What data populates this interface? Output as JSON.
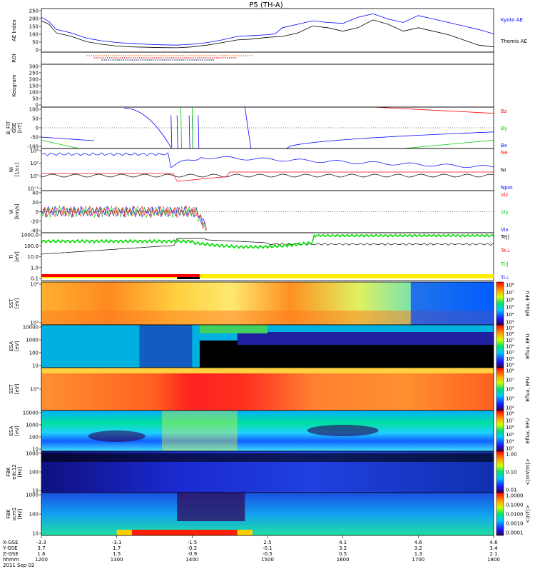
{
  "title": "P5 (TH-A)",
  "colors": {
    "blue": "#0000ff",
    "red": "#ff0000",
    "green": "#00cc00",
    "black": "#000000",
    "orange": "#e07020"
  },
  "chart_data": [
    {
      "type": "line",
      "panel": "AE Index",
      "ylabel": "AE Index",
      "yticks": [
        "250",
        "200",
        "150",
        "100",
        "50",
        "0"
      ],
      "ylim": [
        0,
        250
      ],
      "series": [
        {
          "name": "Kyoto AE",
          "color": "#0000ff",
          "x": [
            1200,
            1210,
            1220,
            1240,
            1260,
            1280,
            1300,
            1320,
            1340,
            1360,
            1380,
            1400,
            1420,
            1440,
            1460,
            1480,
            1500,
            1510,
            1520,
            1540,
            1560,
            1580,
            1600,
            1620,
            1640,
            1660,
            1680,
            1700,
            1720,
            1740,
            1760,
            1780,
            1800
          ],
          "y": [
            200,
            175,
            130,
            110,
            80,
            65,
            55,
            50,
            45,
            42,
            40,
            45,
            55,
            70,
            90,
            95,
            100,
            105,
            140,
            160,
            180,
            170,
            165,
            200,
            220,
            190,
            170,
            210,
            190,
            170,
            150,
            130,
            105
          ]
        },
        {
          "name": "Themis AE",
          "color": "#000000",
          "x": [
            1200,
            1210,
            1220,
            1240,
            1260,
            1280,
            1300,
            1320,
            1340,
            1360,
            1380,
            1400,
            1420,
            1440,
            1460,
            1480,
            1500,
            1520,
            1540,
            1560,
            1580,
            1600,
            1620,
            1640,
            1660,
            1680,
            1700,
            1720,
            1740,
            1760,
            1780,
            1800
          ],
          "y": [
            180,
            160,
            110,
            90,
            60,
            45,
            35,
            30,
            28,
            26,
            25,
            30,
            40,
            55,
            70,
            75,
            85,
            90,
            110,
            150,
            140,
            120,
            140,
            185,
            160,
            120,
            140,
            120,
            100,
            70,
            40,
            30
          ]
        }
      ]
    },
    {
      "type": "line",
      "panel": "ROI",
      "ylabel": "ROI",
      "note": "dotted region-of-interest bars"
    },
    {
      "type": "line",
      "panel": "Keogram",
      "ylabel": "Keogram",
      "yticks": [
        "300",
        "250",
        "200",
        "150",
        "100",
        "50",
        "0"
      ],
      "ylim": [
        0,
        300
      ]
    },
    {
      "type": "line",
      "panel": "B FIT GSE",
      "ylabel": "B_FIT\nGSE\n[nT]",
      "yticks": [
        "100",
        "50",
        "0",
        "-50",
        "-100"
      ],
      "ylim": [
        -100,
        100
      ],
      "legend": [
        "Bz",
        "By",
        "Bx"
      ],
      "legend_colors": [
        "#ff0000",
        "#00cc00",
        "#0000ff"
      ]
    },
    {
      "type": "line",
      "panel": "Ni",
      "ylabel": "Ni\n[1/cc]",
      "yticks": [
        "10⁴",
        "10²",
        "10⁰",
        "10⁻²"
      ],
      "legend": [
        "Ne",
        "Ni",
        "Npot"
      ],
      "legend_colors": [
        "#ff0000",
        "#000000",
        "#0000ff"
      ]
    },
    {
      "type": "line",
      "panel": "Vi",
      "ylabel": "Vi\n[km/s]",
      "yticks": [
        "40",
        "20",
        "0",
        "-20",
        "-40"
      ],
      "ylim": [
        -40,
        40
      ],
      "legend": [
        "Viz",
        "Viy",
        "Vix"
      ],
      "legend_colors": [
        "#ff0000",
        "#00cc00",
        "#0000ff"
      ]
    },
    {
      "type": "line",
      "panel": "Ti",
      "ylabel": "Ti\n[eV]",
      "yticks": [
        "1000.0",
        "100.0",
        "10.0",
        "1.0",
        "0.1"
      ],
      "legend": [
        "Te||",
        "Te⊥",
        "Ti||",
        "Ti⊥"
      ],
      "legend_colors": [
        "#000000",
        "#ff0000",
        "#00cc00",
        "#0000ff"
      ]
    },
    {
      "type": "heatmap",
      "panel": "SST ions",
      "ylabel": "SST\n[eV]",
      "yticks": [
        "10⁶",
        "10⁵"
      ],
      "cbar_label": "Eflux, EFU",
      "cbar_ticks": [
        "10⁸",
        "10⁷",
        "10⁶",
        "10⁵",
        "10⁴",
        "10³"
      ]
    },
    {
      "type": "heatmap",
      "panel": "ESA electrons",
      "ylabel": "ESA\n[eV]",
      "yticks": [
        "10000",
        "1000",
        "100",
        "10"
      ],
      "cbar_label": "Eflux, EFU",
      "cbar_ticks": [
        "10⁹",
        "10⁸",
        "10⁷",
        "10⁶",
        "10⁵",
        "10⁴",
        "10³"
      ]
    },
    {
      "type": "heatmap",
      "panel": "SST electrons",
      "ylabel": "SST\n[eV]",
      "yticks": [
        "10⁵"
      ],
      "cbar_label": "Eflux, EFU",
      "cbar_ticks": [
        "10⁸",
        "10⁷",
        "10⁶",
        "10⁵",
        "10⁴"
      ]
    },
    {
      "type": "heatmap",
      "panel": "ESA ions",
      "ylabel": "ESA\n[eV]",
      "yticks": [
        "10000",
        "1000",
        "100",
        "10"
      ],
      "cbar_label": "Eflux, EFU",
      "cbar_ticks": [
        "10⁸",
        "10⁷",
        "10⁶",
        "10⁵",
        "10⁴",
        "10³"
      ]
    },
    {
      "type": "heatmap",
      "panel": "FBK edc12",
      "ylabel": "FBK\nedc12\n[Hz]",
      "yticks": [
        "1000",
        "100",
        "10"
      ],
      "cbar_label": "<|mV/m|>",
      "cbar_ticks": [
        "1.00",
        "0.10",
        "0.01"
      ]
    },
    {
      "type": "heatmap",
      "panel": "FBK scm1",
      "ylabel": "FBK\nscm1\n[Hz]",
      "yticks": [
        "1000",
        "100",
        "10"
      ],
      "cbar_label": "<|nT|>",
      "cbar_ticks": [
        "1.0000",
        "0.1000",
        "0.0100",
        "0.0010",
        "0.0001"
      ]
    }
  ],
  "xaxis": {
    "rows": [
      {
        "label": "X-GSE",
        "values": [
          "-3.3",
          "-3.1",
          "-1.5",
          "2.5",
          "4.1",
          "4.6",
          "4.6"
        ]
      },
      {
        "label": "Y-GSE",
        "values": [
          "3.7",
          "1.7",
          "-0.2",
          "-0.1",
          "3.2",
          "3.2",
          "3.4"
        ]
      },
      {
        "label": "Z-GSE",
        "values": [
          "1.6",
          "1.5",
          "-0.9",
          "-0.5",
          "0.5",
          "1.3",
          "2.1"
        ]
      },
      {
        "label": "hhmm",
        "values": [
          "1200",
          "1300",
          "1400",
          "1500",
          "1600",
          "1700",
          "1800"
        ]
      }
    ],
    "date": "2011 Sep 02"
  }
}
